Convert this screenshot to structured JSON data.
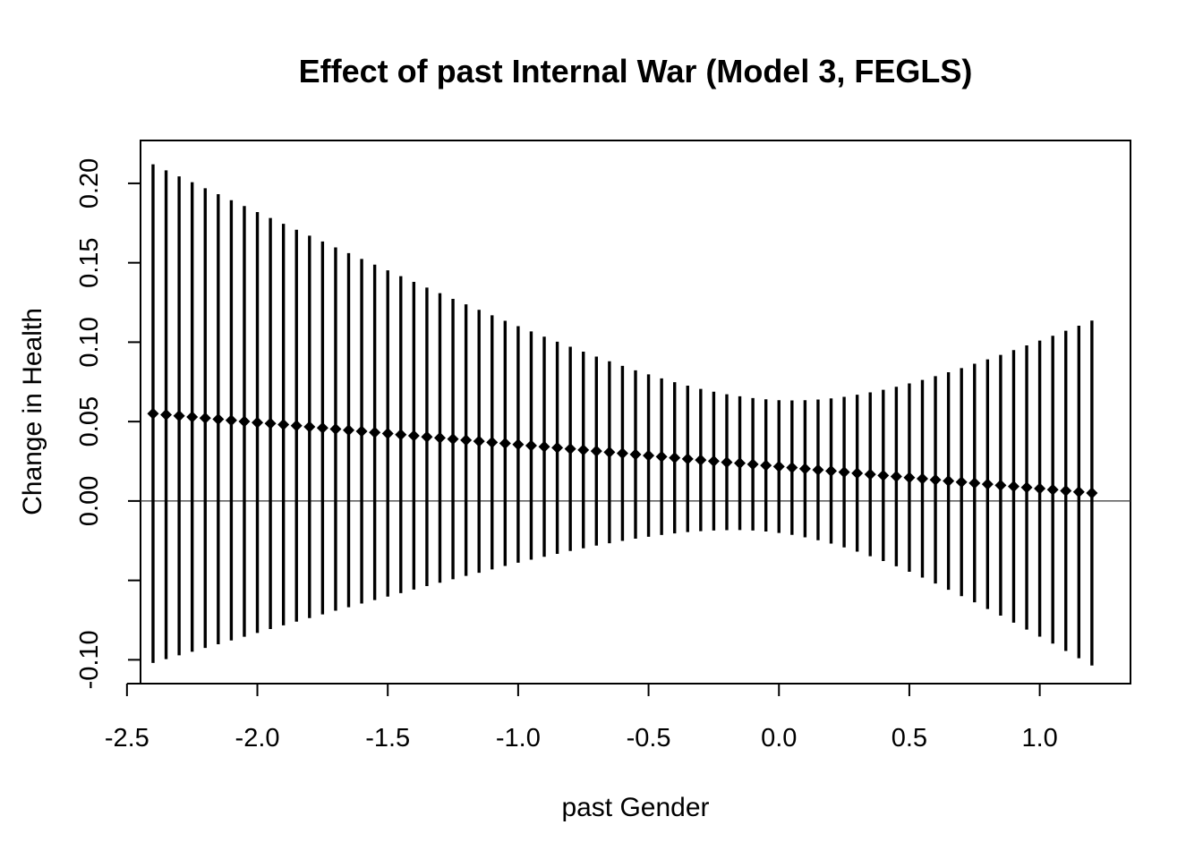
{
  "chart_data": {
    "type": "scatter",
    "title": "Effect of past Internal War (Model 3, FEGLS)",
    "xlabel": "past Gender",
    "ylabel": "Change in Health",
    "xlim": [
      -2.448,
      1.348
    ],
    "ylim": [
      -0.115,
      0.227
    ],
    "x_ticks": [
      -2.5,
      -2.0,
      -1.5,
      -1.0,
      -0.5,
      0.0,
      0.5,
      1.0
    ],
    "x_tick_labels": [
      "-2.5",
      "-2.0",
      "-1.5",
      "-1.0",
      "-0.5",
      "0.0",
      "0.5",
      "1.0"
    ],
    "y_ticks": [
      -0.1,
      -0.05,
      0.0,
      0.05,
      0.1,
      0.15,
      0.2
    ],
    "y_tick_labels": [
      "-0.10",
      "",
      "0.00",
      "0.05",
      "0.10",
      "0.15",
      "0.20"
    ],
    "reference_line_y": 0.0,
    "grid": false,
    "legend": "none",
    "marker": "diamond",
    "x": [
      -2.4,
      -2.35,
      -2.3,
      -2.25,
      -2.2,
      -2.15,
      -2.1,
      -2.05,
      -2.0,
      -1.95,
      -1.9,
      -1.85,
      -1.8,
      -1.75,
      -1.7,
      -1.65,
      -1.6,
      -1.55,
      -1.5,
      -1.45,
      -1.4,
      -1.35,
      -1.3,
      -1.25,
      -1.2,
      -1.15,
      -1.1,
      -1.05,
      -1.0,
      -0.95,
      -0.9,
      -0.85,
      -0.8,
      -0.75,
      -0.7,
      -0.65,
      -0.6,
      -0.55,
      -0.5,
      -0.45,
      -0.4,
      -0.35,
      -0.3,
      -0.25,
      -0.2,
      -0.15,
      -0.1,
      -0.05,
      0.0,
      0.05,
      0.1,
      0.15,
      0.2,
      0.25,
      0.3,
      0.35,
      0.4,
      0.45,
      0.5,
      0.55,
      0.6,
      0.65,
      0.7,
      0.75,
      0.8,
      0.85,
      0.9,
      0.95,
      1.0,
      1.05,
      1.1,
      1.15,
      1.2
    ],
    "estimate": [
      0.055,
      0.0543,
      0.0536,
      0.0529,
      0.0522,
      0.0515,
      0.0508,
      0.0501,
      0.0494,
      0.0488,
      0.0481,
      0.0474,
      0.0467,
      0.046,
      0.0453,
      0.0446,
      0.0439,
      0.0432,
      0.0425,
      0.0418,
      0.0411,
      0.0404,
      0.0397,
      0.039,
      0.0383,
      0.0376,
      0.0369,
      0.0363,
      0.0356,
      0.0349,
      0.0342,
      0.0335,
      0.0328,
      0.0321,
      0.0314,
      0.0307,
      0.03,
      0.0293,
      0.0286,
      0.0279,
      0.0272,
      0.0265,
      0.0258,
      0.0251,
      0.0244,
      0.0238,
      0.0231,
      0.0224,
      0.0217,
      0.021,
      0.0203,
      0.0196,
      0.0189,
      0.0182,
      0.0175,
      0.0168,
      0.0161,
      0.0154,
      0.0147,
      0.014,
      0.0133,
      0.0126,
      0.0119,
      0.0113,
      0.0106,
      0.0099,
      0.0092,
      0.0085,
      0.0078,
      0.0071,
      0.0064,
      0.0057,
      0.005
    ],
    "upper": [
      0.212,
      0.2082,
      0.2044,
      0.2007,
      0.1969,
      0.1932,
      0.1894,
      0.1857,
      0.1819,
      0.1782,
      0.1745,
      0.1708,
      0.1671,
      0.1634,
      0.1597,
      0.1561,
      0.1524,
      0.1488,
      0.1452,
      0.1416,
      0.138,
      0.1344,
      0.1309,
      0.1273,
      0.1238,
      0.1204,
      0.1169,
      0.1135,
      0.1101,
      0.1068,
      0.1035,
      0.1003,
      0.0971,
      0.094,
      0.0909,
      0.088,
      0.0851,
      0.0823,
      0.0797,
      0.0772,
      0.0748,
      0.0726,
      0.0706,
      0.0688,
      0.0672,
      0.0659,
      0.0648,
      0.064,
      0.0635,
      0.0633,
      0.0635,
      0.0639,
      0.0646,
      0.0656,
      0.0669,
      0.0684,
      0.07,
      0.0719,
      0.074,
      0.0762,
      0.0786,
      0.0811,
      0.0837,
      0.0864,
      0.0892,
      0.092,
      0.095,
      0.098,
      0.101,
      0.104,
      0.1072,
      0.1104,
      0.1136
    ],
    "lower": [
      -0.102,
      -0.0996,
      -0.0972,
      -0.0949,
      -0.0925,
      -0.0902,
      -0.0878,
      -0.0855,
      -0.0831,
      -0.0806,
      -0.0783,
      -0.076,
      -0.0737,
      -0.0714,
      -0.0691,
      -0.0669,
      -0.0646,
      -0.0624,
      -0.0602,
      -0.058,
      -0.0558,
      -0.0536,
      -0.0515,
      -0.0493,
      -0.0472,
      -0.0452,
      -0.0431,
      -0.0409,
      -0.0389,
      -0.037,
      -0.0351,
      -0.0333,
      -0.0315,
      -0.0298,
      -0.0281,
      -0.0266,
      -0.0251,
      -0.0237,
      -0.0225,
      -0.0214,
      -0.0204,
      -0.0196,
      -0.019,
      -0.0186,
      -0.0184,
      -0.0183,
      -0.0186,
      -0.0192,
      -0.0201,
      -0.0213,
      -0.0229,
      -0.0247,
      -0.0268,
      -0.0292,
      -0.0319,
      -0.0348,
      -0.0378,
      -0.0411,
      -0.0446,
      -0.0482,
      -0.052,
      -0.0559,
      -0.0599,
      -0.0638,
      -0.068,
      -0.0722,
      -0.0766,
      -0.081,
      -0.0854,
      -0.0898,
      -0.0944,
      -0.099,
      -0.1036
    ]
  }
}
